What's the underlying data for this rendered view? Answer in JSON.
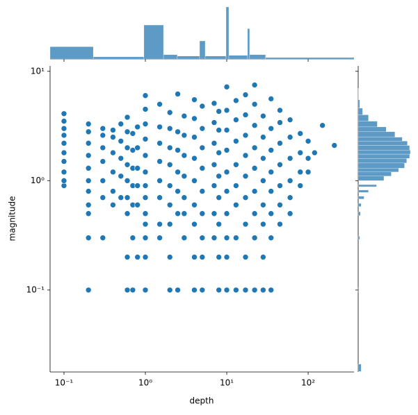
{
  "chart_data": {
    "type": "scatter",
    "x_label": "depth",
    "y_label": "magnitude",
    "xscale": "log",
    "yscale": "log",
    "color": "#1f77b4",
    "hist_color": "#4c8fc0",
    "xlim": [
      0.0675,
      366
    ],
    "ylim": [
      0.0178,
      11.2
    ],
    "xticks": [
      {
        "value": 0.1,
        "label": "10⁻¹"
      },
      {
        "value": 1,
        "label": "10⁰"
      },
      {
        "value": 10,
        "label": "10¹"
      },
      {
        "value": 100,
        "label": "10²"
      }
    ],
    "yticks": [
      {
        "value": 0.1,
        "label": "10⁻¹"
      },
      {
        "value": 1,
        "label": "10⁰"
      },
      {
        "value": 10,
        "label": "10¹"
      }
    ],
    "x": [
      0.1,
      0.1,
      0.1,
      0.1,
      0.1,
      0.1,
      0.1,
      0.1,
      0.1,
      0.1,
      0.2,
      0.2,
      0.2,
      0.2,
      0.2,
      0.2,
      0.2,
      0.2,
      0.2,
      0.2,
      0.2,
      0.3,
      0.3,
      0.3,
      0.3,
      0.3,
      0.3,
      0.3,
      0.4,
      0.4,
      0.4,
      0.4,
      0.4,
      0.4,
      0.5,
      0.5,
      0.5,
      0.5,
      0.5,
      0.6,
      0.6,
      0.6,
      0.6,
      0.6,
      0.6,
      0.6,
      0.6,
      0.6,
      0.7,
      0.7,
      0.7,
      0.7,
      0.7,
      0.7,
      0.7,
      0.8,
      0.8,
      0.8,
      0.8,
      0.8,
      0.8,
      1,
      1,
      1,
      1,
      1,
      1,
      1,
      1,
      1,
      1,
      1,
      1,
      1,
      1.5,
      1.5,
      1.5,
      1.5,
      1.5,
      1.5,
      1.5,
      1.5,
      2,
      2,
      2,
      2,
      2,
      2,
      2,
      2,
      2,
      2.5,
      2.5,
      2.5,
      2.5,
      2.5,
      2.5,
      2.5,
      3,
      3,
      3,
      3,
      3,
      3,
      3,
      4,
      4,
      4,
      4,
      4,
      4,
      4,
      4,
      4,
      5,
      5,
      5,
      5,
      5,
      5,
      5,
      5,
      5,
      7,
      7,
      7,
      7,
      7,
      7,
      7,
      8,
      8,
      8,
      8,
      8,
      8,
      8,
      8,
      10,
      10,
      10,
      10,
      10,
      10,
      10,
      10,
      10,
      10,
      13,
      13,
      13,
      13,
      13,
      13,
      13,
      13,
      17,
      17,
      17,
      17,
      17,
      17,
      17,
      17,
      17,
      22,
      22,
      22,
      22,
      22,
      22,
      22,
      22,
      22,
      28,
      28,
      28,
      28,
      28,
      28,
      28,
      28,
      35,
      35,
      35,
      35,
      35,
      35,
      35,
      35,
      45,
      45,
      45,
      45,
      45,
      45,
      45,
      60,
      60,
      60,
      60,
      60,
      60,
      80,
      80,
      80,
      80,
      100,
      100,
      100,
      120,
      150,
      210
    ],
    "y": [
      0.9,
      1.0,
      1.2,
      1.5,
      1.8,
      2.2,
      2.6,
      3.0,
      3.5,
      4.1,
      0.1,
      0.3,
      0.5,
      0.6,
      0.8,
      1.0,
      1.3,
      1.7,
      2.2,
      2.8,
      3.3,
      0.3,
      0.7,
      1.0,
      1.5,
      2.0,
      2.6,
      3.0,
      0.6,
      0.8,
      1.2,
      1.8,
      2.5,
      2.9,
      0.7,
      1.1,
      1.6,
      2.3,
      3.3,
      0.1,
      0.2,
      0.5,
      0.7,
      1.0,
      1.4,
      2.0,
      2.8,
      3.8,
      0.1,
      0.3,
      0.6,
      0.9,
      1.3,
      1.9,
      2.7,
      0.2,
      0.6,
      0.9,
      1.3,
      2.0,
      3.1,
      0.1,
      0.2,
      0.3,
      0.4,
      0.5,
      0.7,
      0.9,
      1.2,
      1.7,
      2.4,
      3.3,
      4.5,
      6.0,
      0.3,
      0.4,
      0.7,
      1.0,
      1.5,
      2.2,
      3.1,
      5.0,
      0.1,
      0.2,
      0.4,
      0.6,
      0.9,
      1.4,
      2.0,
      3.0,
      4.2,
      0.1,
      0.5,
      0.8,
      1.2,
      1.9,
      2.8,
      6.2,
      0.3,
      0.5,
      0.7,
      1.1,
      1.7,
      2.6,
      3.9,
      0.1,
      0.2,
      0.4,
      0.6,
      1.0,
      1.6,
      2.5,
      3.7,
      5.5,
      0.1,
      0.2,
      0.3,
      0.5,
      0.8,
      1.3,
      2.0,
      3.0,
      4.8,
      0.3,
      0.5,
      0.9,
      1.4,
      2.2,
      3.4,
      5.1,
      0.1,
      0.2,
      0.4,
      0.7,
      1.1,
      1.8,
      2.9,
      4.3,
      0.1,
      0.2,
      0.3,
      0.5,
      0.8,
      1.2,
      1.9,
      2.9,
      4.4,
      7.2,
      0.1,
      0.3,
      0.6,
      0.9,
      1.4,
      2.3,
      3.6,
      5.4,
      0.1,
      0.2,
      0.4,
      0.7,
      1.1,
      1.7,
      2.6,
      4.0,
      6.1,
      0.1,
      0.3,
      0.5,
      0.8,
      1.3,
      2.0,
      3.2,
      5.0,
      7.5,
      0.1,
      0.2,
      0.4,
      0.6,
      1.0,
      1.6,
      2.5,
      3.9,
      0.1,
      0.3,
      0.5,
      0.8,
      1.2,
      1.9,
      3.0,
      5.6,
      0.4,
      0.6,
      0.9,
      1.4,
      2.2,
      3.4,
      4.4,
      0.5,
      0.7,
      1.0,
      1.6,
      2.5,
      3.6,
      0.9,
      1.2,
      1.8,
      2.7,
      1.2,
      1.6,
      2.3,
      1.8,
      3.2,
      2.1
    ],
    "marginal_x": {
      "bins": [
        0.0675,
        0.229,
        0.96,
        1.67,
        2.47,
        4.64,
        5.43,
        9.8,
        10.6,
        18.0,
        19.1,
        30,
        366
      ],
      "counts": [
        1700,
        300,
        4700,
        600,
        400,
        2500,
        400,
        7200,
        500,
        4200,
        600,
        200
      ]
    },
    "marginal_y": {
      "bins": [
        0.018,
        0.021,
        0.095,
        0.105,
        0.29,
        0.31,
        0.48,
        0.52,
        0.58,
        0.62,
        0.68,
        0.72,
        0.78,
        0.82,
        0.88,
        0.92,
        1.0,
        1.1,
        1.2,
        1.3,
        1.45,
        1.6,
        1.75,
        1.9,
        2.1,
        2.3,
        2.5,
        2.8,
        3.1,
        3.5,
        4.0,
        4.6,
        5.5,
        7.0
      ],
      "counts": [
        400,
        0,
        100,
        0,
        200,
        0,
        300,
        0,
        400,
        0,
        800,
        0,
        1400,
        0,
        2500,
        0,
        3500,
        4500,
        5500,
        6300,
        6600,
        7000,
        7100,
        7000,
        6700,
        6000,
        5000,
        3800,
        2600,
        1400,
        600,
        200,
        50
      ]
    }
  }
}
